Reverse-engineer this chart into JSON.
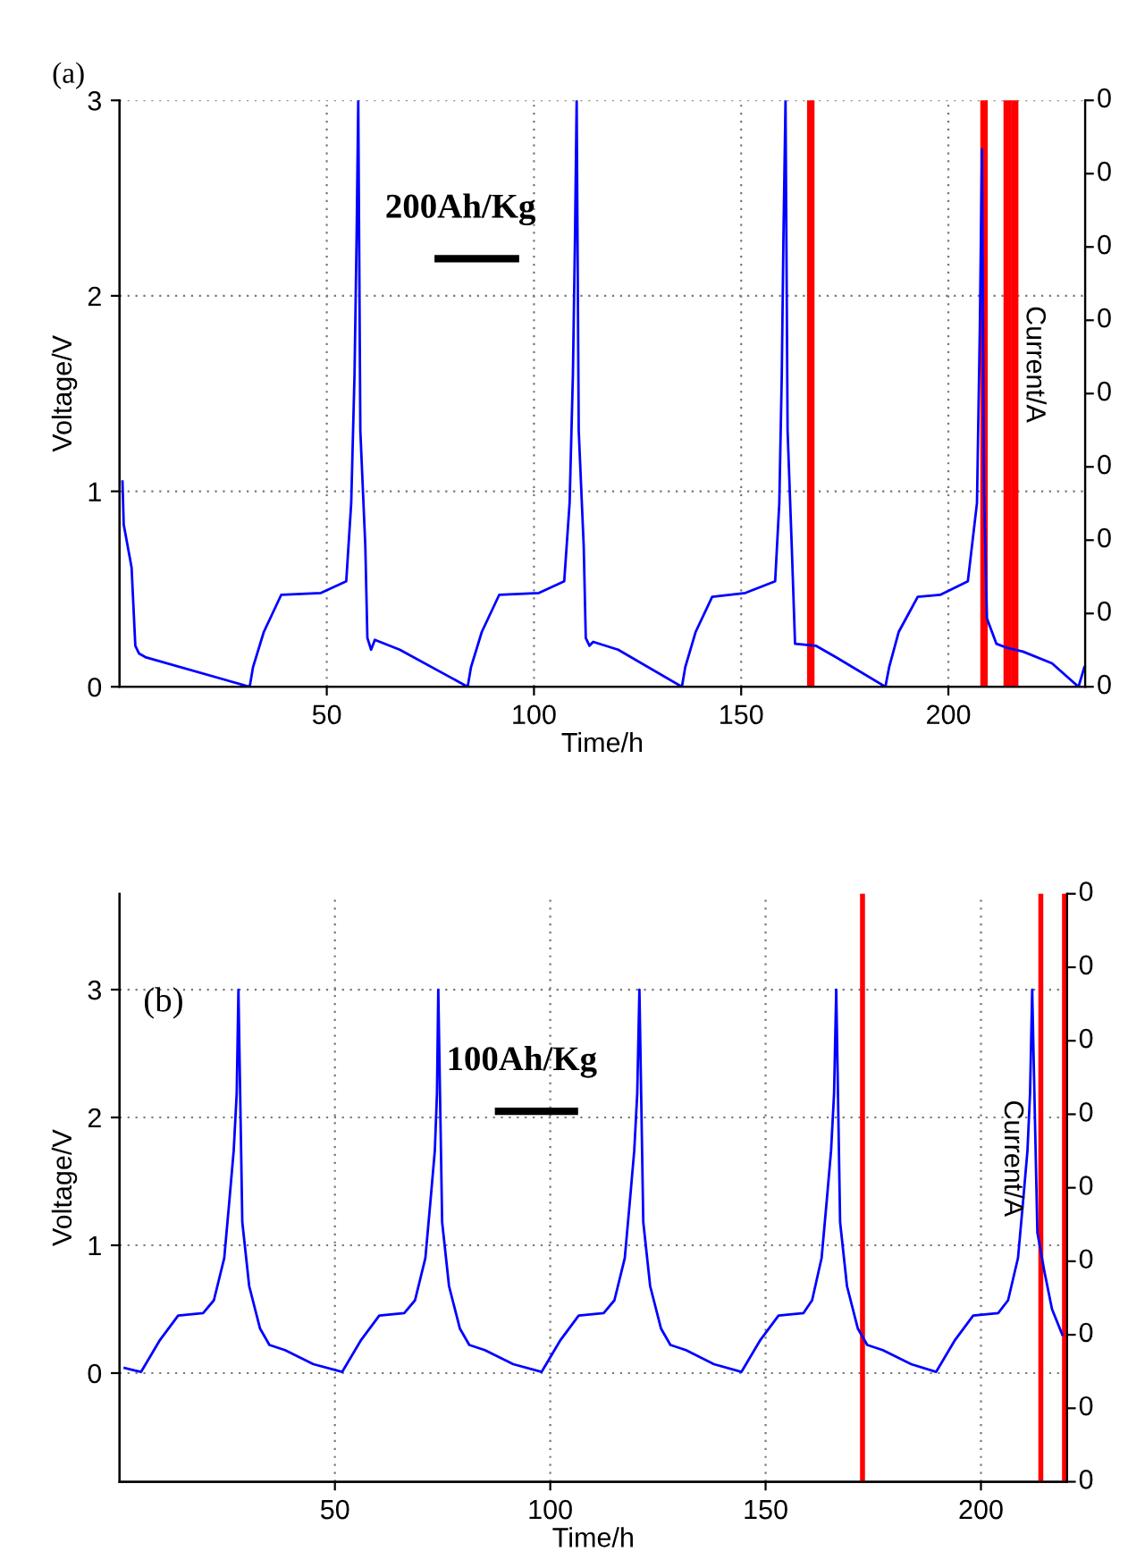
{
  "chart_data": [
    {
      "type": "line",
      "title": "(a)",
      "xlabel": "Time/h",
      "ylabel": "Voltage/V",
      "y2label": "Current/A",
      "annotations": [
        "200Ah/Kg",
        "0",
        "0",
        "0",
        "0",
        "0",
        "0",
        "0",
        "0",
        "0"
      ],
      "x": [
        0.7,
        1,
        2.9,
        3.8,
        4.7,
        6.4,
        31.4,
        32.2,
        34.8,
        39,
        48.6,
        54.7,
        55.9,
        56.7,
        57.2,
        57.6,
        58.1,
        59.3,
        59.8,
        60.7,
        61.6,
        67.6,
        84,
        84.8,
        87.4,
        91.6,
        101.2,
        107.3,
        108.6,
        109.4,
        109.9,
        110.3,
        110.8,
        112,
        112.5,
        113.4,
        114.3,
        120.3,
        135.7,
        136.5,
        139,
        143,
        151,
        158.2,
        159.2,
        159.8,
        160.2,
        160.7,
        161.2,
        162.2,
        163,
        168,
        173,
        184.8,
        185.7,
        188,
        192.6,
        198,
        204.7,
        206.9,
        207.6,
        208.1,
        208.6,
        209.3,
        211.6,
        214,
        218,
        225,
        231.4,
        232.8
      ],
      "series": [
        {
          "color": "#0000ff",
          "values": [
            1.05,
            0.83,
            0.61,
            0.21,
            0.17,
            0.15,
            0,
            0.1,
            0.28,
            0.47,
            0.48,
            0.54,
            0.94,
            1.6,
            2.3,
            3.0,
            1.31,
            0.72,
            0.25,
            0.19,
            0.24,
            0.19,
            0,
            0.1,
            0.28,
            0.47,
            0.48,
            0.54,
            0.94,
            1.6,
            2.3,
            3.0,
            1.31,
            0.72,
            0.25,
            0.21,
            0.23,
            0.19,
            0,
            0.1,
            0.28,
            0.46,
            0.48,
            0.54,
            0.94,
            1.6,
            2.3,
            3.0,
            1.31,
            0.72,
            0.22,
            0.21,
            0.15,
            0,
            0.1,
            0.28,
            0.46,
            0.47,
            0.54,
            0.94,
            1.85,
            2.75,
            1.0,
            0.35,
            0.22,
            0.2,
            0.18,
            0.12,
            0,
            0.1
          ]
        }
      ],
      "xlim": [
        0,
        233
      ],
      "xticks": [
        50,
        100,
        150,
        200
      ],
      "ylim": [
        0,
        3
      ],
      "yticks": [
        0,
        1,
        2,
        3
      ],
      "ref_lines": [
        {
          "axis": "x",
          "value": 166.8,
          "color": "#ff0000"
        },
        {
          "axis": "x",
          "value": 208.6,
          "color": "#ff0000"
        },
        {
          "axis": "x",
          "value": 214.2,
          "color": "#ff0000"
        },
        {
          "axis": "x",
          "value": 216.0,
          "color": "#ff0000"
        }
      ],
      "grid": true,
      "legend": false,
      "marker": "none",
      "line_style": "solid"
    },
    {
      "type": "line",
      "xlabel": "Time/h",
      "ylabel": "Voltage/V",
      "y2label": "Current/A",
      "annotations": [
        "(b)",
        "100Ah/Kg",
        "0",
        "0",
        "0",
        "0",
        "0",
        "0",
        "0",
        "0",
        "0"
      ],
      "x": [
        1.2,
        3.6,
        5.0,
        9.4,
        13.6,
        19.4,
        21.9,
        24.3,
        25.5,
        26.5,
        27.2,
        27.6,
        28.5,
        30.1,
        32.6,
        34.8,
        38.4,
        45,
        51.7,
        56.1,
        60.3,
        66.1,
        68.6,
        71,
        72.2,
        73.2,
        73.7,
        74.0,
        74.9,
        76.5,
        79,
        81.2,
        84.8,
        91.4,
        98,
        102.4,
        106.6,
        112.4,
        114.9,
        117.3,
        118.5,
        119.5,
        120.2,
        120.7,
        121.6,
        123.2,
        125.7,
        127.9,
        131.5,
        138,
        144.4,
        148.8,
        153,
        158.8,
        160.8,
        163,
        164.2,
        165.2,
        165.9,
        166.4,
        167.3,
        168.9,
        171.4,
        173.6,
        177.2,
        183.8,
        189.6,
        194,
        198.2,
        204,
        206.3,
        208.6,
        209.8,
        210.8,
        211.4,
        211.9,
        213.1,
        214.7,
        216.5,
        218.9
      ],
      "series": [
        {
          "color": "#0000ff",
          "values": [
            0.04,
            0.02,
            0.01,
            0.26,
            0.45,
            0.47,
            0.57,
            0.9,
            1.35,
            1.74,
            2.19,
            3.0,
            1.18,
            0.68,
            0.35,
            0.22,
            0.18,
            0.07,
            0.01,
            0.26,
            0.45,
            0.47,
            0.57,
            0.9,
            1.35,
            1.74,
            2.19,
            3.0,
            1.18,
            0.68,
            0.35,
            0.22,
            0.18,
            0.07,
            0.01,
            0.26,
            0.45,
            0.47,
            0.57,
            0.9,
            1.35,
            1.74,
            2.19,
            3.0,
            1.18,
            0.68,
            0.35,
            0.22,
            0.18,
            0.07,
            0.01,
            0.26,
            0.45,
            0.47,
            0.57,
            0.9,
            1.35,
            1.74,
            2.19,
            3.0,
            1.18,
            0.68,
            0.35,
            0.22,
            0.18,
            0.07,
            0.01,
            0.26,
            0.45,
            0.47,
            0.57,
            0.9,
            1.35,
            1.74,
            2.19,
            3.0,
            1.1,
            0.8,
            0.5,
            0.3
          ]
        }
      ],
      "xlim": [
        0,
        220
      ],
      "xticks": [
        50,
        100,
        150,
        200
      ],
      "ylim": [
        -0.85,
        3.75
      ],
      "yticks": [
        0,
        1,
        2,
        3
      ],
      "ref_lines": [
        {
          "axis": "x",
          "value": 172.5,
          "color": "#ff0000"
        },
        {
          "axis": "x",
          "value": 213.9,
          "color": "#ff0000"
        },
        {
          "axis": "x",
          "value": 219.4,
          "color": "#ff0000"
        }
      ],
      "grid": true,
      "legend": false,
      "marker": "none",
      "line_style": "solid"
    }
  ]
}
